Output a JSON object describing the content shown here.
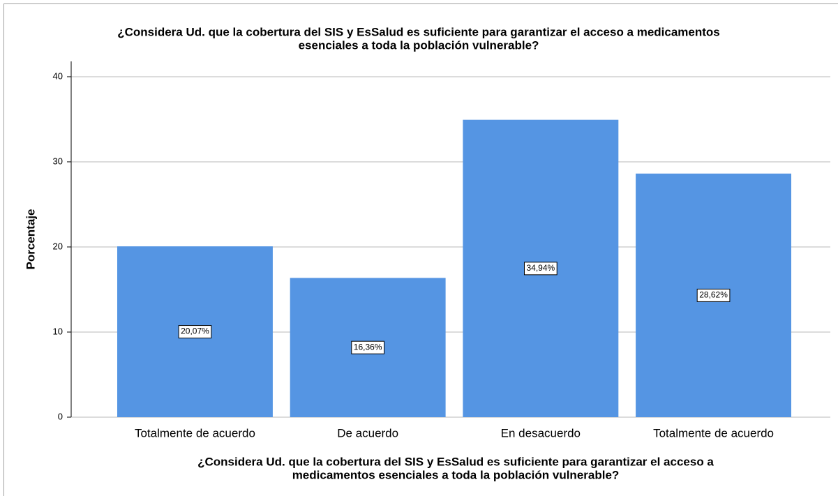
{
  "chart_data": {
    "type": "bar",
    "title": [
      "¿Considera Ud. que la cobertura del SIS y EsSalud es suficiente para garantizar el acceso a medicamentos",
      "esenciales a toda la población vulnerable?"
    ],
    "x_label": [
      "¿Considera Ud. que la cobertura del SIS y EsSalud es suficiente para garantizar el acceso a",
      "medicamentos esenciales a toda la población vulnerable?"
    ],
    "y_label": "Porcentaje",
    "categories": [
      "Totalmente de acuerdo",
      "De acuerdo",
      "En desacuerdo",
      "Totalmente de acuerdo"
    ],
    "values": [
      20.07,
      16.36,
      34.94,
      28.62
    ],
    "value_labels": [
      "20,07%",
      "16,36%",
      "34,94%",
      "28,62%"
    ],
    "color": "#5595e3",
    "ylim": [
      0,
      41.8
    ],
    "yticks": [
      0,
      10,
      20,
      30,
      40
    ],
    "grid": true
  }
}
